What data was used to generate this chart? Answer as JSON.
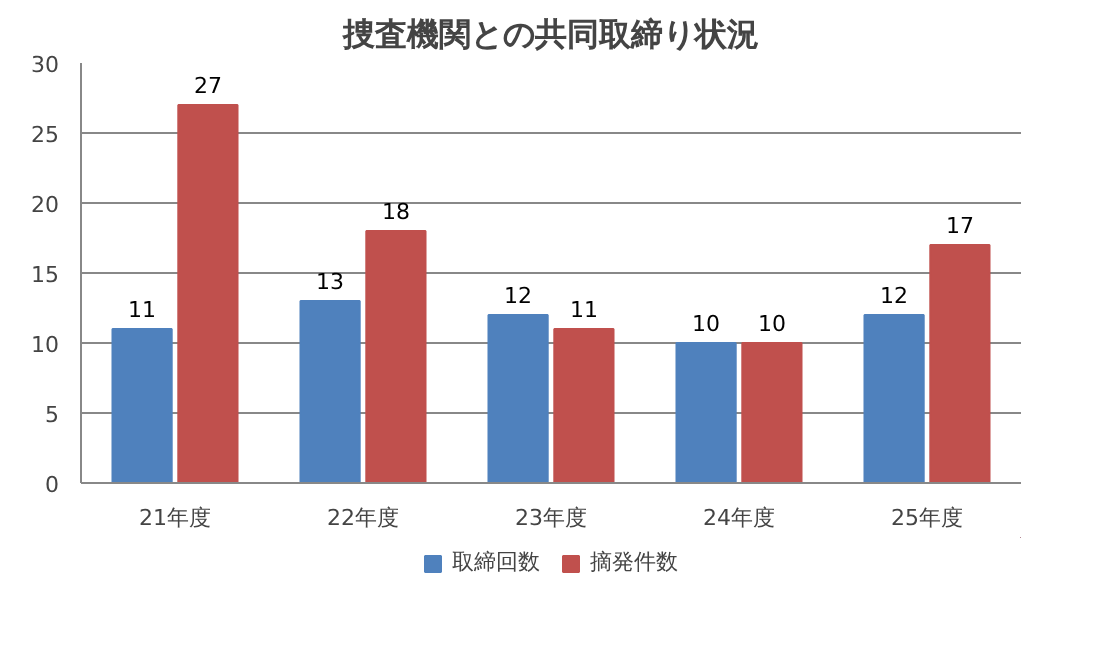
{
  "chart_data": {
    "type": "bar",
    "title": "捜査機関との共同取締り状況",
    "categories": [
      "21年度",
      "22年度",
      "23年度",
      "24年度",
      "25年度"
    ],
    "series": [
      {
        "name": "取締回数",
        "color": "#4f81bd",
        "values": [
          11,
          13,
          12,
          10,
          12
        ]
      },
      {
        "name": "摘発件数",
        "color": "#c0504d",
        "values": [
          27,
          18,
          11,
          10,
          17
        ]
      }
    ],
    "ylim": [
      0,
      30
    ],
    "yticks": [
      0,
      5,
      10,
      15,
      20,
      25,
      30
    ],
    "grid": "y",
    "legend": "bottom",
    "data_labels": true
  }
}
